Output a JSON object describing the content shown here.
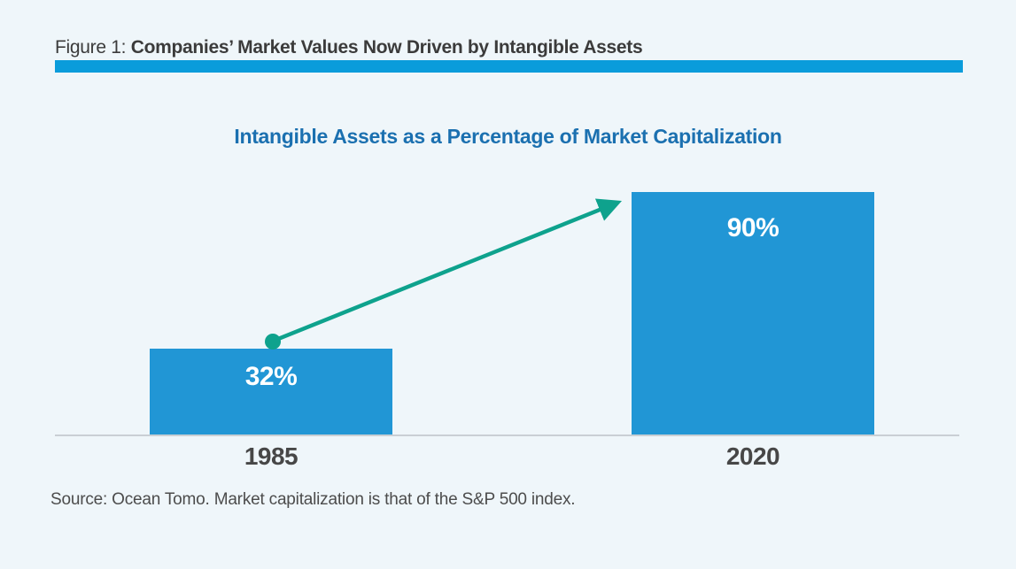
{
  "figure_header": {
    "label": "Figure 1:",
    "title": "Companies’ Market Values Now Driven by Intangible Assets"
  },
  "chart_data": {
    "type": "bar",
    "title": "Intangible Assets as a Percentage of Market Capitalization",
    "categories": [
      "1985",
      "2020"
    ],
    "values": [
      32,
      90
    ],
    "value_labels": [
      "32%",
      "90%"
    ],
    "ylim": [
      0,
      100
    ],
    "grid": false,
    "legend": false,
    "bar_color": "#2196D5",
    "title_color": "#1B70B0",
    "annotation_arrow": {
      "from_category": "1985",
      "from_value": 32,
      "to_category": "2020",
      "to_value": 90,
      "color": "#0EA28D"
    }
  },
  "source_note": "Source: Ocean Tomo. Market capitalization is that of the S&P 500 index.",
  "colors": {
    "background": "#EFF6FA",
    "header_rule": "#0A9CDB",
    "bar": "#2196D5",
    "chart_title": "#1B70B0",
    "arrow": "#0EA28D",
    "axis_line": "#C9CFD4",
    "header_text": "#3B3B3B",
    "tick_text": "#474747",
    "source_text": "#4C4C4C"
  }
}
